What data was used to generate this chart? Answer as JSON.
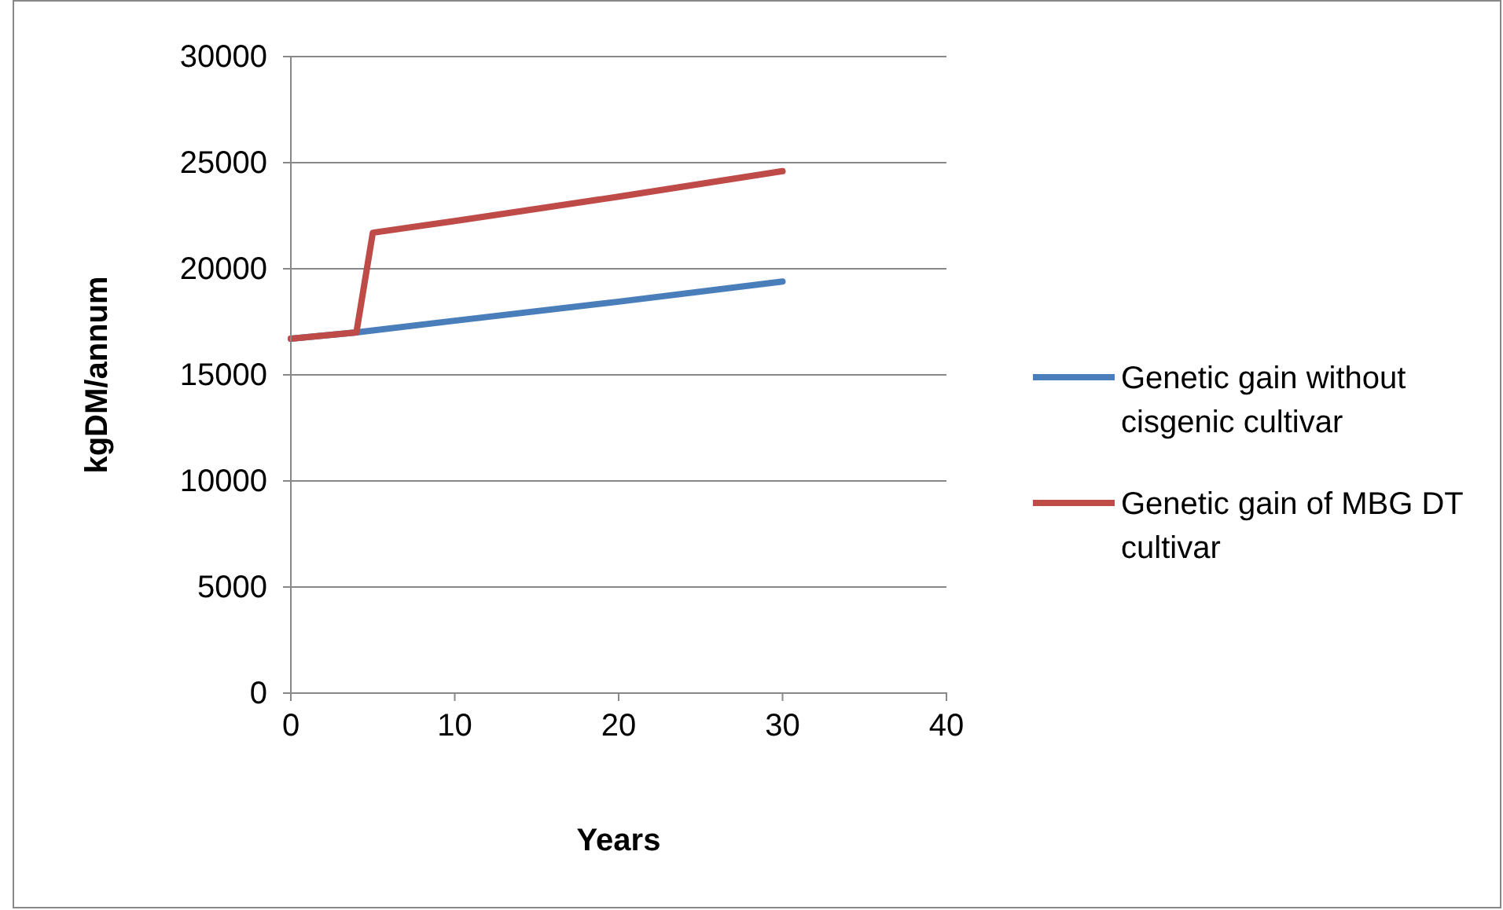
{
  "chart_data": {
    "type": "line",
    "xlabel": "Years",
    "ylabel": "kgDM/annum",
    "xlim": [
      0,
      40
    ],
    "xticks": [
      0,
      10,
      20,
      30,
      40
    ],
    "ylim": [
      0,
      30000
    ],
    "yticks": [
      0,
      5000,
      10000,
      15000,
      20000,
      25000,
      30000
    ],
    "grid": "y",
    "legend": "right",
    "marker": "none",
    "line_style": "solid",
    "series": [
      {
        "name": "Genetic gain without cisgenic cultivar",
        "color": "#4a7ebb",
        "x": [
          0,
          4,
          10,
          20,
          30
        ],
        "values": [
          16700,
          17000,
          17550,
          18450,
          19400
        ]
      },
      {
        "name": "Genetic gain of MBG DT cultivar",
        "color": "#be4b48",
        "x": [
          0,
          4,
          5,
          10,
          20,
          30
        ],
        "values": [
          16700,
          17000,
          21700,
          22250,
          23400,
          24600
        ]
      }
    ]
  }
}
